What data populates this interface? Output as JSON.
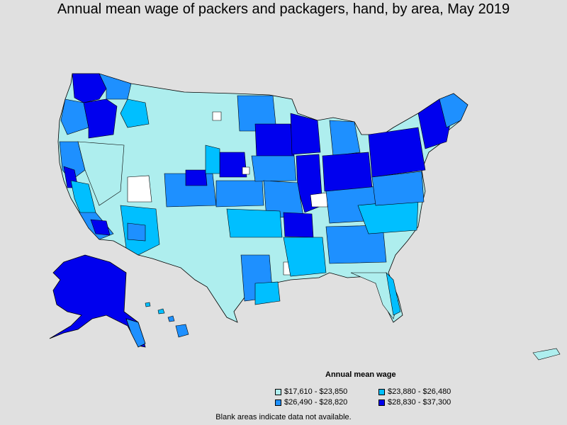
{
  "title": "Annual mean wage of packers and packagers, hand, by area, May 2019",
  "legend": {
    "title": "Annual mean wage",
    "items": [
      {
        "label": "$17,610 - $23,850",
        "color": "#aeeeee"
      },
      {
        "label": "$23,880 - $26,480",
        "color": "#00bfff"
      },
      {
        "label": "$26,490 - $28,820",
        "color": "#1e90ff"
      },
      {
        "label": "$28,830 - $37,300",
        "color": "#0000ee"
      }
    ]
  },
  "footnote": "Blank areas indicate data not available.",
  "colors": {
    "background": "#e0e0e0",
    "border": "#000000",
    "no_data": "#ffffff"
  }
}
